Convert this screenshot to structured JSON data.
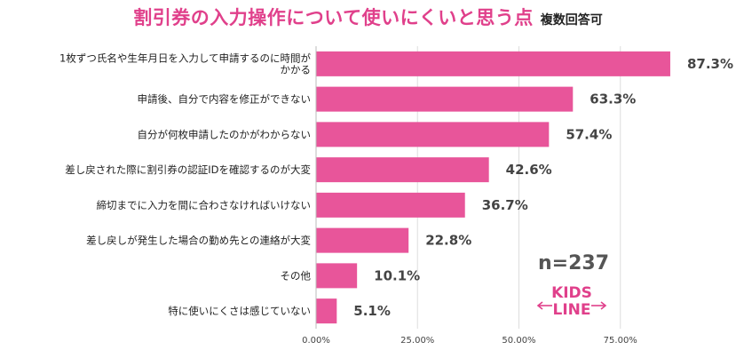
{
  "title": "割引券の入力操作について使いにくいと思う点",
  "subtitle": "複数回答可",
  "sample_size": "n=237",
  "logo": {
    "line1": "KIDS",
    "line2": "LINE"
  },
  "colors": {
    "bar": "#e8559a",
    "title": "#e0408b",
    "grid": "#dddddd"
  },
  "chart_data": {
    "type": "bar",
    "orientation": "horizontal",
    "categories": [
      [
        "1枚ずつ氏名や生年月日を入力して申請するのに時間が",
        "かかる"
      ],
      [
        "申請後、自分で内容を修正ができない"
      ],
      [
        "自分が何枚申請したのかがわからない"
      ],
      [
        "差し戻された際に割引券の認証IDを確認するのが大変"
      ],
      [
        "締切までに入力を間に合わさなければいけない"
      ],
      [
        "差し戻しが発生した場合の勤め先との連絡が大変"
      ],
      [
        "その他"
      ],
      [
        "特に使いにくさは感じていない"
      ]
    ],
    "values": [
      87.3,
      63.3,
      57.4,
      42.6,
      36.7,
      22.8,
      10.1,
      5.1
    ],
    "value_labels": [
      "87.3%",
      "63.3%",
      "57.4%",
      "42.6%",
      "36.7%",
      "22.8%",
      "10.1%",
      "5.1%"
    ],
    "xlim": [
      0,
      100
    ],
    "ticks": [
      0,
      25,
      50,
      75
    ],
    "tick_labels": [
      "0.00%",
      "25.00%",
      "50.00%",
      "75.00%"
    ],
    "grid": true
  }
}
